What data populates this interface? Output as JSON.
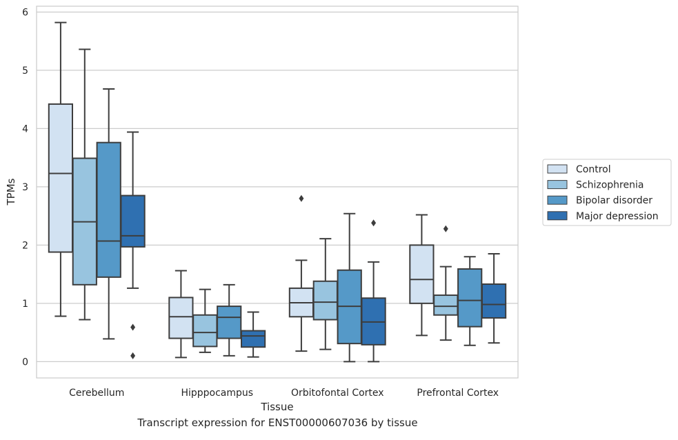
{
  "caption": "Transcript expression for ENST00000607036 by tissue",
  "chart_data": {
    "type": "boxplot",
    "xlabel": "Tissue",
    "ylabel": "TPMs",
    "ylim": [
      -0.28,
      6.1
    ],
    "yticks": [
      0,
      1,
      2,
      3,
      4,
      5,
      6
    ],
    "categories": [
      "Cerebellum",
      "Hipppocampus",
      "Orbitofontal Cortex",
      "Prefrontal Cortex"
    ],
    "grid": "horizontal",
    "legend_position": "right",
    "series": [
      {
        "name": "Control",
        "color": "#d2e2f2",
        "boxes": [
          {
            "whisker_low": 0.78,
            "q1": 1.88,
            "median": 3.23,
            "q3": 4.42,
            "whisker_high": 5.82,
            "outliers": []
          },
          {
            "whisker_low": 0.07,
            "q1": 0.4,
            "median": 0.77,
            "q3": 1.1,
            "whisker_high": 1.56,
            "outliers": []
          },
          {
            "whisker_low": 0.18,
            "q1": 0.77,
            "median": 1.01,
            "q3": 1.26,
            "whisker_high": 1.74,
            "outliers": [
              2.8
            ]
          },
          {
            "whisker_low": 0.45,
            "q1": 1.0,
            "median": 1.41,
            "q3": 2.0,
            "whisker_high": 2.52,
            "outliers": []
          }
        ]
      },
      {
        "name": "Schizophrenia",
        "color": "#98c4df",
        "boxes": [
          {
            "whisker_low": 0.72,
            "q1": 1.32,
            "median": 2.4,
            "q3": 3.49,
            "whisker_high": 5.36,
            "outliers": []
          },
          {
            "whisker_low": 0.16,
            "q1": 0.26,
            "median": 0.5,
            "q3": 0.8,
            "whisker_high": 1.24,
            "outliers": []
          },
          {
            "whisker_low": 0.21,
            "q1": 0.72,
            "median": 1.02,
            "q3": 1.38,
            "whisker_high": 2.11,
            "outliers": []
          },
          {
            "whisker_low": 0.37,
            "q1": 0.8,
            "median": 0.95,
            "q3": 1.14,
            "whisker_high": 1.63,
            "outliers": [
              2.28
            ]
          }
        ]
      },
      {
        "name": "Bipolar disorder",
        "color": "#5599c8",
        "boxes": [
          {
            "whisker_low": 0.39,
            "q1": 1.45,
            "median": 2.07,
            "q3": 3.76,
            "whisker_high": 4.68,
            "outliers": []
          },
          {
            "whisker_low": 0.1,
            "q1": 0.4,
            "median": 0.76,
            "q3": 0.95,
            "whisker_high": 1.32,
            "outliers": []
          },
          {
            "whisker_low": 0.0,
            "q1": 0.31,
            "median": 0.95,
            "q3": 1.57,
            "whisker_high": 2.54,
            "outliers": []
          },
          {
            "whisker_low": 0.28,
            "q1": 0.6,
            "median": 1.05,
            "q3": 1.59,
            "whisker_high": 1.8,
            "outliers": []
          }
        ]
      },
      {
        "name": "Major depression",
        "color": "#2f70b1",
        "boxes": [
          {
            "whisker_low": 1.26,
            "q1": 1.97,
            "median": 2.16,
            "q3": 2.85,
            "whisker_high": 3.94,
            "outliers": [
              0.59,
              0.1
            ]
          },
          {
            "whisker_low": 0.08,
            "q1": 0.25,
            "median": 0.44,
            "q3": 0.53,
            "whisker_high": 0.85,
            "outliers": []
          },
          {
            "whisker_low": 0.0,
            "q1": 0.29,
            "median": 0.68,
            "q3": 1.09,
            "whisker_high": 1.71,
            "outliers": [
              2.38
            ]
          },
          {
            "whisker_low": 0.32,
            "q1": 0.75,
            "median": 0.98,
            "q3": 1.33,
            "whisker_high": 1.85,
            "outliers": []
          }
        ]
      }
    ]
  }
}
